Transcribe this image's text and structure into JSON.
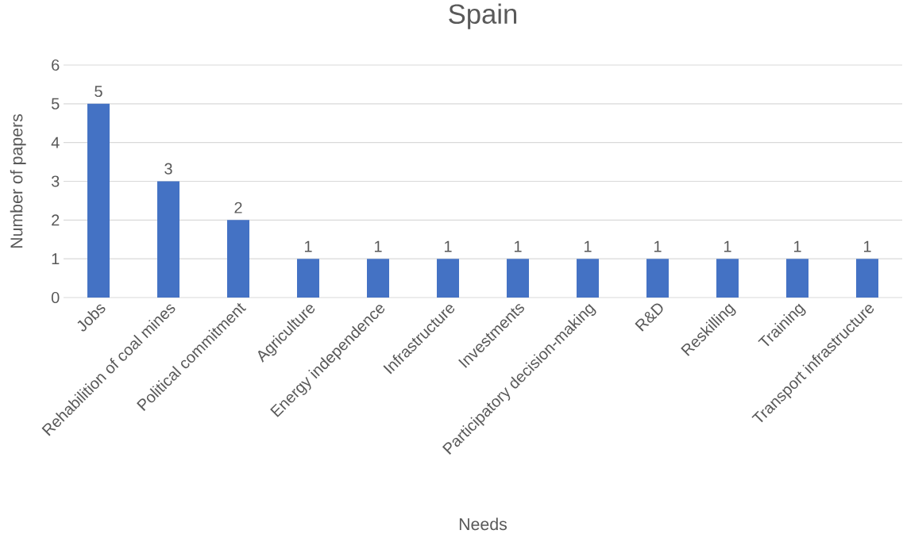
{
  "chart_data": {
    "type": "bar",
    "title": "Spain",
    "xlabel": "Needs",
    "ylabel": "Number of papers",
    "categories": [
      "Jobs",
      "Rehabilition of coal mines",
      "Political commitment",
      "Agriculture",
      "Energy independence",
      "Infrastructure",
      "Investments",
      "Participatory decision-making",
      "R&D",
      "Reskilling",
      "Training",
      "Transport infrastructure"
    ],
    "values": [
      5,
      3,
      2,
      1,
      1,
      1,
      1,
      1,
      1,
      1,
      1,
      1
    ],
    "color": "#4472c4",
    "ylim": [
      0,
      6
    ],
    "yticks": [
      0,
      1,
      2,
      3,
      4,
      5,
      6
    ],
    "grid": "y",
    "data_labels": true
  }
}
